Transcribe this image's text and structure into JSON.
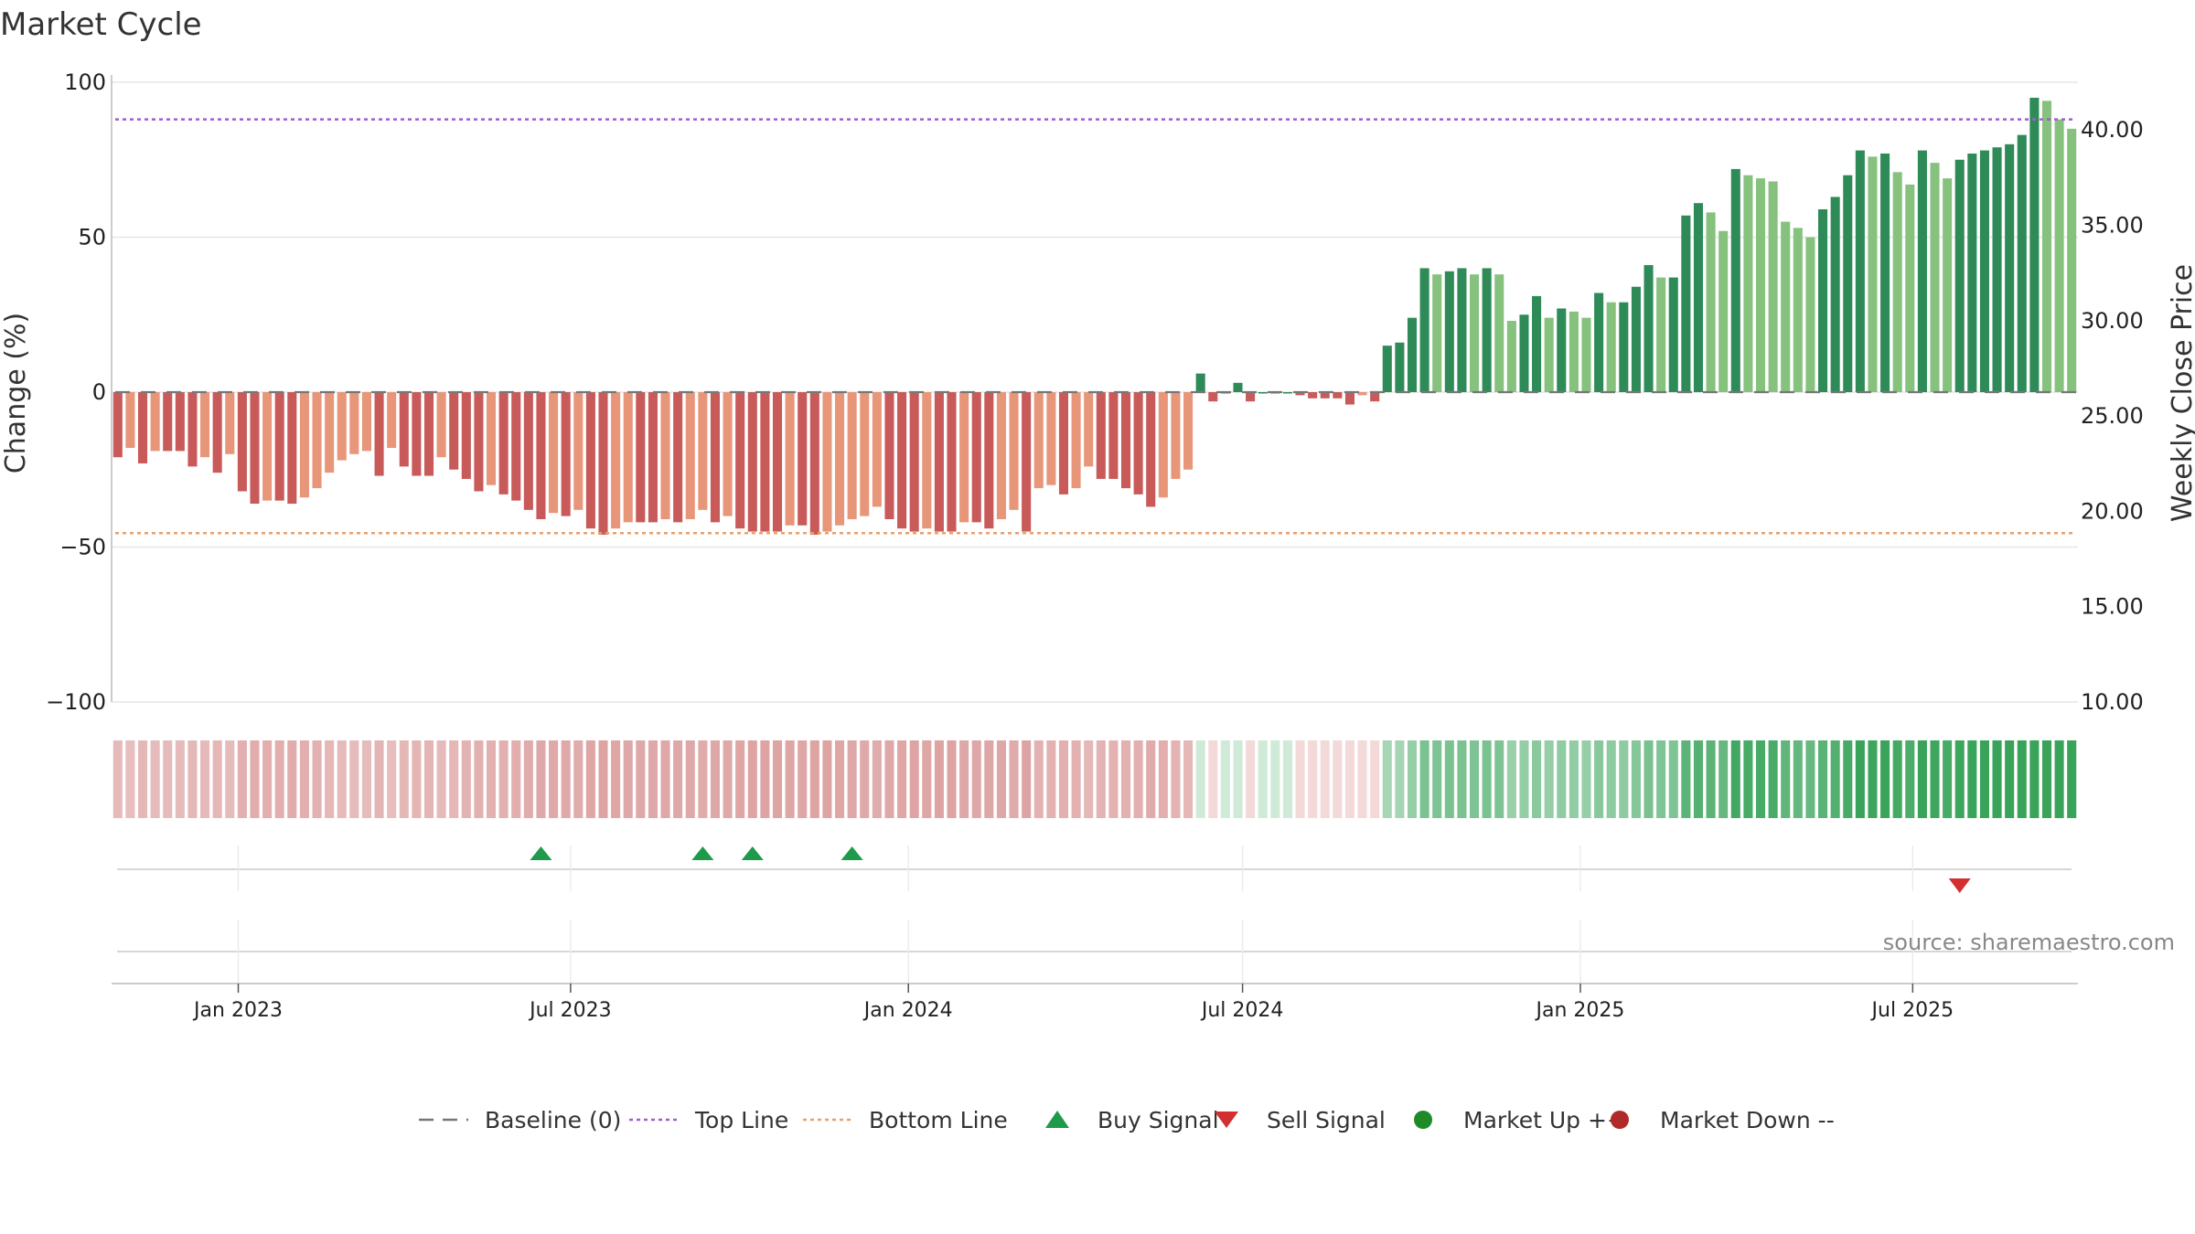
{
  "chart_data": {
    "type": "bar",
    "title": "Market Cycle",
    "ylabel_left": "Change (%)",
    "ylabel_right": "Weekly Close Price",
    "ylim_left": [
      -100,
      100
    ],
    "ylim_right": [
      10,
      42.5
    ],
    "yticks_left": [
      100,
      50,
      0,
      -50,
      -100
    ],
    "yticks_left_labels": [
      "100",
      "50",
      "0",
      "−50",
      "−100"
    ],
    "yticks_right": [
      40,
      35,
      30,
      25,
      20,
      15,
      10
    ],
    "yticks_right_labels": [
      "40.00",
      "35.00",
      "30.00",
      "25.00",
      "20.00",
      "15.00",
      "10.00"
    ],
    "x_start": "2022-10-24",
    "x_end": "2025-09-29",
    "xticks": [
      "2023-01-01",
      "2023-07-01",
      "2024-01-01",
      "2024-07-01",
      "2025-01-01",
      "2025-07-01"
    ],
    "xtick_labels": [
      "Jan 2023",
      "Jul 2023",
      "Jan 2024",
      "Jul 2024",
      "Jan 2025",
      "Jul 2025"
    ],
    "top_line": 88,
    "bottom_line": -45.5,
    "baseline": 0,
    "weekly_change": [
      -21,
      -18,
      -23,
      -19,
      -19,
      -19,
      -24,
      -21,
      -26,
      -20,
      -32,
      -36,
      -35,
      -35,
      -36,
      -34,
      -31,
      -26,
      -22,
      -20,
      -19,
      -27,
      -18,
      -24,
      -27,
      -27,
      -21,
      -25,
      -28,
      -32,
      -30,
      -33,
      -35,
      -38,
      -41,
      -39,
      -40,
      -38,
      -44,
      -46,
      -44,
      -42,
      -42,
      -42,
      -41,
      -42,
      -41,
      -38,
      -42,
      -40,
      -44,
      -45,
      -45,
      -45,
      -43,
      -43,
      -46,
      -45,
      -43,
      -41,
      -40,
      -37,
      -41,
      -44,
      -45,
      -44,
      -45,
      -45,
      -42,
      -42,
      -44,
      -41,
      -38,
      -45,
      -31,
      -30,
      -33,
      -31,
      -24,
      -28,
      -28,
      -31,
      -33,
      -37,
      -34,
      -28,
      -25,
      6,
      -3,
      0,
      3,
      -3,
      0,
      0,
      0,
      -1,
      -2,
      -2,
      -2,
      -4,
      -1,
      -3,
      15,
      16,
      24,
      40,
      38,
      39,
      40,
      38,
      40,
      38,
      23,
      25,
      31,
      24,
      27,
      26,
      24,
      32,
      29,
      29,
      34,
      41,
      37,
      37,
      57,
      61,
      58,
      52,
      72,
      70,
      69,
      68,
      55,
      53,
      50,
      59,
      63,
      70,
      78,
      76,
      77,
      71,
      67,
      78,
      74,
      69,
      75,
      77,
      78,
      79,
      80,
      83,
      95,
      94,
      88,
      85
    ],
    "baseline_marks": "0",
    "buy_signals": [
      "2023-06-19",
      "2023-09-18",
      "2023-10-16",
      "2023-12-11"
    ],
    "sell_signals": [
      "2025-08-25"
    ],
    "legend": [
      {
        "label": "Baseline (0)",
        "symbol": "dash",
        "color": "#777777"
      },
      {
        "label": "Top Line",
        "symbol": "dotted",
        "color": "#a05ed0"
      },
      {
        "label": "Bottom Line",
        "symbol": "dotted",
        "color": "#e8a06a"
      },
      {
        "label": "Buy Signal",
        "symbol": "triangle-up",
        "color": "#1e9a4a"
      },
      {
        "label": "Sell Signal",
        "symbol": "triangle-down",
        "color": "#d32f2f"
      },
      {
        "label": "Market Up ++",
        "symbol": "circle",
        "color": "#1f8a2a"
      },
      {
        "label": "Market Down --",
        "symbol": "circle",
        "color": "#b02a2a"
      }
    ],
    "legend_position": "bottom-center",
    "colors": {
      "red_dark": "#c85a5a",
      "red_light": "#e8967a",
      "green_dark": "#2e8b57",
      "green_light": "#86c27e",
      "top_line": "#a05ed0",
      "bottom_line": "#e8a06a",
      "grid": "#e6e6e6"
    }
  },
  "source": "source: sharemaestro.com"
}
